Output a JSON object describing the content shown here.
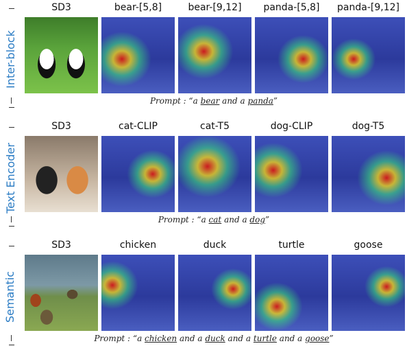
{
  "rows": [
    {
      "label": "Inter-block",
      "columns": [
        "SD3",
        "bear-[5,8]",
        "bear-[9,12]",
        "panda-[5,8]",
        "panda-[9,12]"
      ],
      "prompt": "Prompt :",
      "caption": [
        {
          "text": "“a "
        },
        {
          "text": "bear",
          "underline": true
        },
        {
          "text": " and a "
        },
        {
          "text": "panda",
          "underline": true
        },
        {
          "text": "”"
        }
      ]
    },
    {
      "label": "Text Encoder",
      "columns": [
        "SD3",
        "cat-CLIP",
        "cat-T5",
        "dog-CLIP",
        "dog-T5"
      ],
      "prompt": "Prompt :",
      "caption": [
        {
          "text": "“a "
        },
        {
          "text": "cat",
          "underline": true
        },
        {
          "text": " and a "
        },
        {
          "text": "dog",
          "underline": true
        },
        {
          "text": "”"
        }
      ]
    },
    {
      "label": "Semantic",
      "columns": [
        "SD3",
        "chicken",
        "duck",
        "turtle",
        "goose"
      ],
      "prompt": "Prompt :",
      "caption": [
        {
          "text": "“a "
        },
        {
          "text": "chicken",
          "underline": true
        },
        {
          "text": " and a "
        },
        {
          "text": "duck",
          "underline": true
        },
        {
          "text": " and a "
        },
        {
          "text": "turtle",
          "underline": true
        },
        {
          "text": " and a "
        },
        {
          "text": "goose",
          "underline": true
        },
        {
          "text": "”"
        }
      ]
    }
  ]
}
